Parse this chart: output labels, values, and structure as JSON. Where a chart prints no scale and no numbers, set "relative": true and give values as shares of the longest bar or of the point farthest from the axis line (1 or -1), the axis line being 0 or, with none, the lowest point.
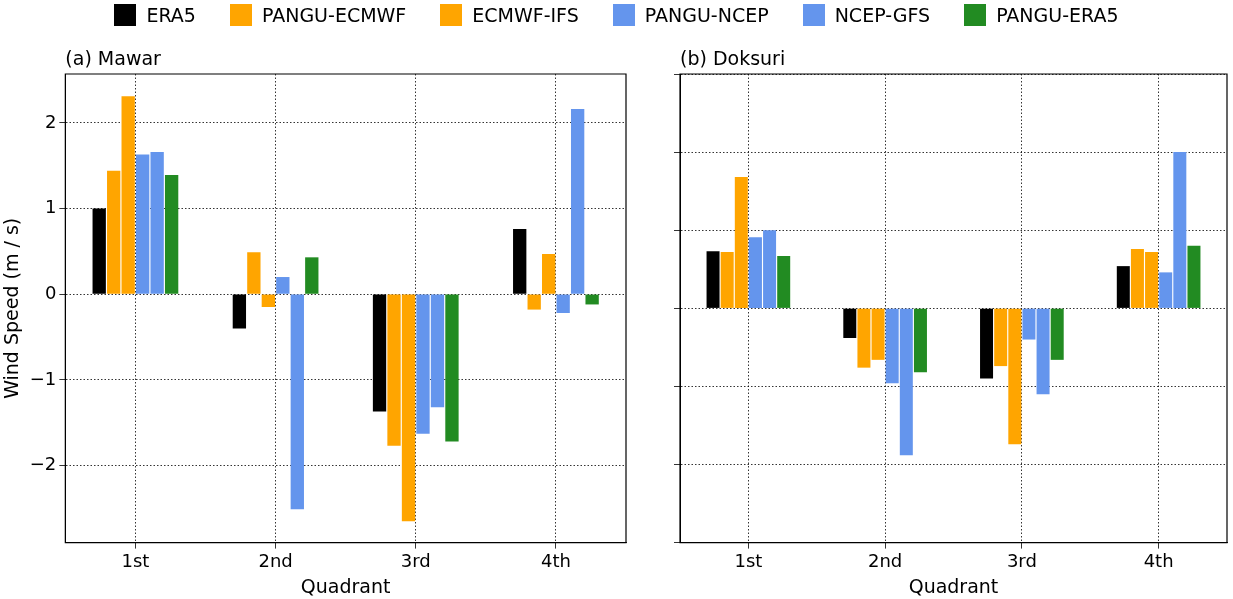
{
  "chart_data": [
    {
      "type": "bar",
      "title": "(a) Mawar",
      "xlabel": "Quadrant",
      "ylabel": "Wind Speed (m / s)",
      "categories": [
        "1st",
        "2nd",
        "3rd",
        "4th"
      ],
      "ylim": [
        -2.9,
        2.57
      ],
      "yticks": [
        {
          "value": -2,
          "label": "−2"
        },
        {
          "value": -1,
          "label": "−1"
        },
        0,
        1,
        2
      ],
      "grid": true,
      "legend": "top",
      "series": [
        {
          "name": "ERA5",
          "color": "#000000",
          "values": [
            1.0,
            -0.4,
            -1.37,
            0.76
          ]
        },
        {
          "name": "PANGU-ECMWF",
          "color": "#ffa500",
          "values": [
            1.44,
            0.49,
            -1.77,
            -0.18
          ]
        },
        {
          "name": "ECMWF-IFS",
          "color": "#ffa500",
          "values": [
            2.31,
            -0.15,
            -2.65,
            0.47
          ]
        },
        {
          "name": "PANGU-NCEP",
          "color": "#6495ed",
          "values": [
            1.63,
            0.2,
            -1.63,
            -0.22
          ]
        },
        {
          "name": "NCEP-GFS",
          "color": "#6495ed",
          "values": [
            1.66,
            -2.51,
            -1.32,
            2.16
          ]
        },
        {
          "name": "PANGU-ERA5",
          "color": "#228b22",
          "values": [
            1.39,
            0.43,
            -1.72,
            -0.12
          ]
        }
      ]
    },
    {
      "type": "bar",
      "title": "(b) Doksuri",
      "xlabel": "Quadrant",
      "categories": [
        "1st",
        "2nd",
        "3rd",
        "4th"
      ],
      "relative": true,
      "grid": true,
      "legend": "top",
      "series": [
        {
          "name": "ERA5",
          "color": "#000000",
          "values": [
            0.365,
            -0.19,
            -0.45,
            0.27
          ]
        },
        {
          "name": "PANGU-ECMWF",
          "color": "#ffa500",
          "values": [
            0.36,
            -0.38,
            -0.37,
            0.38
          ]
        },
        {
          "name": "ECMWF-IFS",
          "color": "#ffa500",
          "values": [
            0.84,
            -0.33,
            -0.87,
            0.36
          ]
        },
        {
          "name": "PANGU-NCEP",
          "color": "#6495ed",
          "values": [
            0.455,
            -0.48,
            -0.2,
            0.23
          ]
        },
        {
          "name": "NCEP-GFS",
          "color": "#6495ed",
          "values": [
            0.5,
            -0.94,
            -0.55,
            1.0
          ]
        },
        {
          "name": "PANGU-ERA5",
          "color": "#228b22",
          "values": [
            0.335,
            -0.41,
            -0.33,
            0.4
          ]
        }
      ]
    }
  ]
}
